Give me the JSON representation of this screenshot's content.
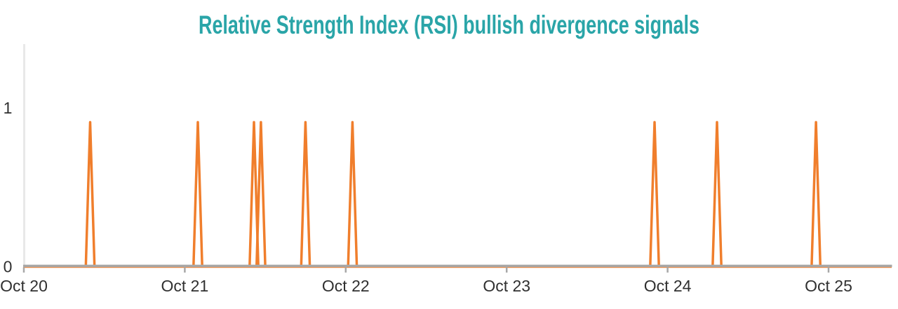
{
  "title": {
    "text": "Relative Strength Index (RSI) bullish divergence signals",
    "color": "#2AA5A8"
  },
  "chart_data": {
    "type": "line",
    "title": "Relative Strength Index (RSI) bullish divergence signals",
    "xlabel": "",
    "ylabel": "",
    "x_unit": "days since Oct 20 00:00",
    "xlim_days": [
      0,
      5.4
    ],
    "ylim": [
      0,
      1.4
    ],
    "grid": false,
    "legend": "none",
    "x_ticks": [
      {
        "label": "Oct 20",
        "day_offset": 0
      },
      {
        "label": "Oct 21",
        "day_offset": 1
      },
      {
        "label": "Oct 22",
        "day_offset": 2
      },
      {
        "label": "Oct 23",
        "day_offset": 3
      },
      {
        "label": "Oct 24",
        "day_offset": 4
      },
      {
        "label": "Oct 25",
        "day_offset": 5
      }
    ],
    "y_ticks": [
      {
        "label": "0",
        "value": 0
      },
      {
        "label": "1",
        "value": 1
      }
    ],
    "series": [
      {
        "name": "RSI bullish divergence signal",
        "baseline_value": 0,
        "spike_peak_value": 0.91,
        "spike_half_width_days": 0.027,
        "spikes": [
          {
            "day_offset": 0.412,
            "approx_time": "Oct 20 ~09:55"
          },
          {
            "day_offset": 1.081,
            "approx_time": "Oct 21 ~02:00"
          },
          {
            "day_offset": 1.43,
            "approx_time": "Oct 21 ~10:20"
          },
          {
            "day_offset": 1.473,
            "approx_time": "Oct 21 ~11:20"
          },
          {
            "day_offset": 1.75,
            "approx_time": "Oct 21 ~18:00"
          },
          {
            "day_offset": 2.042,
            "approx_time": "Oct 22 ~01:00"
          },
          {
            "day_offset": 3.919,
            "approx_time": "Oct 23 ~22:05"
          },
          {
            "day_offset": 4.307,
            "approx_time": "Oct 24 ~07:20"
          },
          {
            "day_offset": 4.922,
            "approx_time": "Oct 24 ~22:10"
          }
        ]
      }
    ],
    "colors": {
      "line": "#F07E2C",
      "x_axis": "#A8A8A8",
      "y_axis_line": "#E8E8E8",
      "tick_label_text": "#303030"
    }
  }
}
